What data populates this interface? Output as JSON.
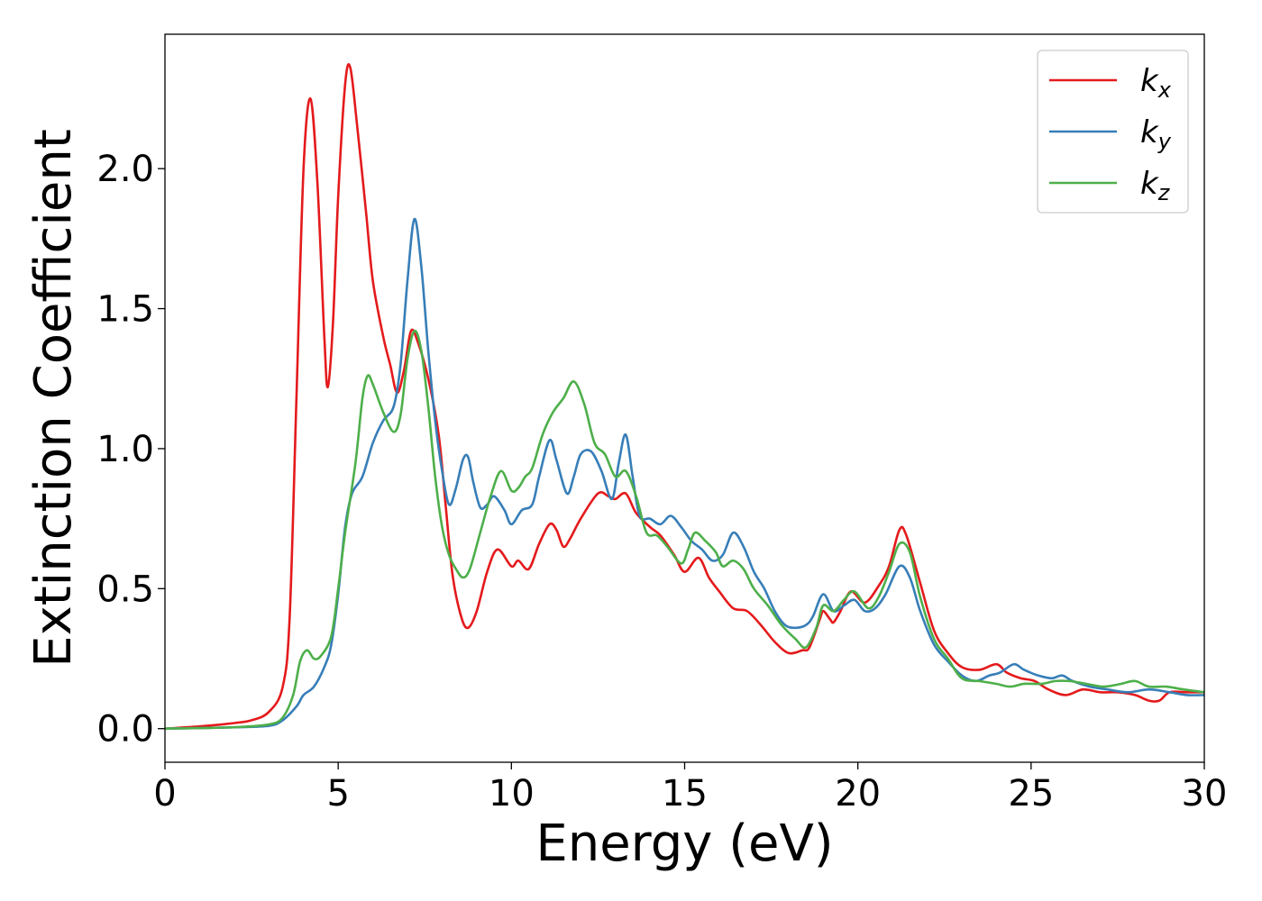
{
  "chart_data": {
    "type": "line",
    "title": "",
    "xlabel": "Energy (eV)",
    "ylabel": "Extinction Coefficient",
    "xlim": [
      0,
      30
    ],
    "ylim": [
      -0.12,
      2.48
    ],
    "xticks": [
      0,
      5,
      10,
      15,
      20,
      25,
      30
    ],
    "xtick_labels": [
      "0",
      "5",
      "10",
      "15",
      "20",
      "25",
      "30"
    ],
    "yticks": [
      0.0,
      0.5,
      1.0,
      1.5,
      2.0
    ],
    "ytick_labels": [
      "0.0",
      "0.5",
      "1.0",
      "1.5",
      "2.0"
    ],
    "grid": false,
    "legend_position": "top-right",
    "series": [
      {
        "name": "k",
        "subscript": "x",
        "color": "#e41a1c",
        "points": [
          [
            0,
            0.0
          ],
          [
            1,
            0.008
          ],
          [
            2,
            0.02
          ],
          [
            2.5,
            0.03
          ],
          [
            3,
            0.06
          ],
          [
            3.4,
            0.15
          ],
          [
            3.6,
            0.4
          ],
          [
            3.8,
            1.2
          ],
          [
            4.0,
            2.0
          ],
          [
            4.2,
            2.25
          ],
          [
            4.4,
            1.95
          ],
          [
            4.6,
            1.4
          ],
          [
            4.7,
            1.22
          ],
          [
            4.85,
            1.45
          ],
          [
            5.0,
            1.9
          ],
          [
            5.2,
            2.3
          ],
          [
            5.35,
            2.36
          ],
          [
            5.55,
            2.15
          ],
          [
            5.8,
            1.85
          ],
          [
            6.0,
            1.6
          ],
          [
            6.3,
            1.4
          ],
          [
            6.5,
            1.3
          ],
          [
            6.7,
            1.2
          ],
          [
            6.9,
            1.28
          ],
          [
            7.1,
            1.42
          ],
          [
            7.3,
            1.38
          ],
          [
            7.6,
            1.25
          ],
          [
            7.9,
            1.05
          ],
          [
            8.1,
            0.8
          ],
          [
            8.3,
            0.55
          ],
          [
            8.55,
            0.4
          ],
          [
            8.75,
            0.36
          ],
          [
            9.0,
            0.42
          ],
          [
            9.3,
            0.56
          ],
          [
            9.6,
            0.64
          ],
          [
            10.0,
            0.58
          ],
          [
            10.2,
            0.6
          ],
          [
            10.5,
            0.57
          ],
          [
            10.8,
            0.66
          ],
          [
            11.1,
            0.73
          ],
          [
            11.3,
            0.71
          ],
          [
            11.5,
            0.65
          ],
          [
            11.7,
            0.68
          ],
          [
            12.0,
            0.75
          ],
          [
            12.5,
            0.84
          ],
          [
            12.8,
            0.83
          ],
          [
            13.0,
            0.82
          ],
          [
            13.3,
            0.84
          ],
          [
            13.6,
            0.77
          ],
          [
            14.0,
            0.72
          ],
          [
            14.3,
            0.69
          ],
          [
            14.7,
            0.62
          ],
          [
            15.0,
            0.56
          ],
          [
            15.4,
            0.61
          ],
          [
            15.7,
            0.54
          ],
          [
            16.0,
            0.49
          ],
          [
            16.4,
            0.43
          ],
          [
            16.8,
            0.42
          ],
          [
            17.2,
            0.37
          ],
          [
            17.6,
            0.31
          ],
          [
            18.0,
            0.27
          ],
          [
            18.4,
            0.28
          ],
          [
            18.6,
            0.29
          ],
          [
            18.9,
            0.39
          ],
          [
            19.0,
            0.42
          ],
          [
            19.2,
            0.39
          ],
          [
            19.3,
            0.38
          ],
          [
            19.5,
            0.42
          ],
          [
            19.8,
            0.49
          ],
          [
            20.2,
            0.45
          ],
          [
            20.6,
            0.51
          ],
          [
            20.9,
            0.58
          ],
          [
            21.2,
            0.71
          ],
          [
            21.4,
            0.69
          ],
          [
            21.8,
            0.52
          ],
          [
            22.2,
            0.35
          ],
          [
            22.6,
            0.27
          ],
          [
            23.0,
            0.22
          ],
          [
            23.5,
            0.21
          ],
          [
            24.0,
            0.23
          ],
          [
            24.3,
            0.2
          ],
          [
            24.7,
            0.18
          ],
          [
            25.1,
            0.17
          ],
          [
            25.5,
            0.14
          ],
          [
            26.0,
            0.12
          ],
          [
            26.5,
            0.14
          ],
          [
            27.0,
            0.13
          ],
          [
            27.5,
            0.13
          ],
          [
            28.0,
            0.12
          ],
          [
            28.4,
            0.1
          ],
          [
            28.7,
            0.1
          ],
          [
            29.0,
            0.13
          ],
          [
            29.5,
            0.13
          ],
          [
            30.0,
            0.13
          ]
        ]
      },
      {
        "name": "k",
        "subscript": "y",
        "color": "#377eb8",
        "points": [
          [
            0,
            0.0
          ],
          [
            1,
            0.002
          ],
          [
            2,
            0.005
          ],
          [
            3,
            0.01
          ],
          [
            3.4,
            0.03
          ],
          [
            3.8,
            0.08
          ],
          [
            4.0,
            0.12
          ],
          [
            4.3,
            0.15
          ],
          [
            4.6,
            0.22
          ],
          [
            4.8,
            0.3
          ],
          [
            5.0,
            0.48
          ],
          [
            5.2,
            0.72
          ],
          [
            5.4,
            0.84
          ],
          [
            5.7,
            0.9
          ],
          [
            6.0,
            1.02
          ],
          [
            6.3,
            1.1
          ],
          [
            6.6,
            1.15
          ],
          [
            6.8,
            1.3
          ],
          [
            7.0,
            1.6
          ],
          [
            7.2,
            1.82
          ],
          [
            7.4,
            1.65
          ],
          [
            7.6,
            1.35
          ],
          [
            7.8,
            1.1
          ],
          [
            8.0,
            0.92
          ],
          [
            8.2,
            0.8
          ],
          [
            8.4,
            0.86
          ],
          [
            8.6,
            0.96
          ],
          [
            8.75,
            0.97
          ],
          [
            8.9,
            0.88
          ],
          [
            9.1,
            0.79
          ],
          [
            9.3,
            0.8
          ],
          [
            9.5,
            0.83
          ],
          [
            9.8,
            0.78
          ],
          [
            10.0,
            0.73
          ],
          [
            10.3,
            0.78
          ],
          [
            10.6,
            0.8
          ],
          [
            10.8,
            0.9
          ],
          [
            11.1,
            1.03
          ],
          [
            11.3,
            0.96
          ],
          [
            11.6,
            0.84
          ],
          [
            11.8,
            0.9
          ],
          [
            12.0,
            0.98
          ],
          [
            12.3,
            0.99
          ],
          [
            12.6,
            0.92
          ],
          [
            12.9,
            0.82
          ],
          [
            13.1,
            0.95
          ],
          [
            13.3,
            1.05
          ],
          [
            13.5,
            0.9
          ],
          [
            13.7,
            0.76
          ],
          [
            14.0,
            0.75
          ],
          [
            14.3,
            0.73
          ],
          [
            14.6,
            0.76
          ],
          [
            14.9,
            0.72
          ],
          [
            15.2,
            0.67
          ],
          [
            15.5,
            0.64
          ],
          [
            15.8,
            0.6
          ],
          [
            16.1,
            0.62
          ],
          [
            16.4,
            0.7
          ],
          [
            16.7,
            0.65
          ],
          [
            17.0,
            0.56
          ],
          [
            17.3,
            0.5
          ],
          [
            17.6,
            0.42
          ],
          [
            17.9,
            0.37
          ],
          [
            18.2,
            0.36
          ],
          [
            18.5,
            0.37
          ],
          [
            18.7,
            0.4
          ],
          [
            19.0,
            0.48
          ],
          [
            19.3,
            0.42
          ],
          [
            19.6,
            0.44
          ],
          [
            19.9,
            0.46
          ],
          [
            20.2,
            0.42
          ],
          [
            20.5,
            0.43
          ],
          [
            20.8,
            0.48
          ],
          [
            21.2,
            0.58
          ],
          [
            21.5,
            0.54
          ],
          [
            21.8,
            0.42
          ],
          [
            22.2,
            0.3
          ],
          [
            22.6,
            0.24
          ],
          [
            23.0,
            0.19
          ],
          [
            23.4,
            0.17
          ],
          [
            23.8,
            0.19
          ],
          [
            24.1,
            0.2
          ],
          [
            24.5,
            0.23
          ],
          [
            24.8,
            0.21
          ],
          [
            25.2,
            0.19
          ],
          [
            25.6,
            0.18
          ],
          [
            25.9,
            0.19
          ],
          [
            26.2,
            0.17
          ],
          [
            26.7,
            0.15
          ],
          [
            27.2,
            0.14
          ],
          [
            27.8,
            0.13
          ],
          [
            28.4,
            0.14
          ],
          [
            29.0,
            0.13
          ],
          [
            29.5,
            0.12
          ],
          [
            30.0,
            0.12
          ]
        ]
      },
      {
        "name": "k",
        "subscript": "z",
        "color": "#4daf4a",
        "points": [
          [
            0,
            0.0
          ],
          [
            1,
            0.002
          ],
          [
            2,
            0.005
          ],
          [
            3,
            0.015
          ],
          [
            3.4,
            0.04
          ],
          [
            3.7,
            0.12
          ],
          [
            3.9,
            0.24
          ],
          [
            4.1,
            0.28
          ],
          [
            4.3,
            0.25
          ],
          [
            4.5,
            0.26
          ],
          [
            4.8,
            0.33
          ],
          [
            5.0,
            0.5
          ],
          [
            5.2,
            0.7
          ],
          [
            5.5,
            0.95
          ],
          [
            5.7,
            1.18
          ],
          [
            5.85,
            1.26
          ],
          [
            6.0,
            1.23
          ],
          [
            6.3,
            1.13
          ],
          [
            6.6,
            1.06
          ],
          [
            6.8,
            1.12
          ],
          [
            7.0,
            1.32
          ],
          [
            7.2,
            1.42
          ],
          [
            7.4,
            1.35
          ],
          [
            7.6,
            1.15
          ],
          [
            7.8,
            0.9
          ],
          [
            8.0,
            0.72
          ],
          [
            8.2,
            0.62
          ],
          [
            8.4,
            0.57
          ],
          [
            8.6,
            0.54
          ],
          [
            8.8,
            0.57
          ],
          [
            9.1,
            0.7
          ],
          [
            9.4,
            0.83
          ],
          [
            9.7,
            0.92
          ],
          [
            10.0,
            0.85
          ],
          [
            10.2,
            0.86
          ],
          [
            10.4,
            0.9
          ],
          [
            10.6,
            0.93
          ],
          [
            10.9,
            1.05
          ],
          [
            11.2,
            1.13
          ],
          [
            11.5,
            1.18
          ],
          [
            11.8,
            1.24
          ],
          [
            12.1,
            1.16
          ],
          [
            12.4,
            1.02
          ],
          [
            12.7,
            0.98
          ],
          [
            13.0,
            0.9
          ],
          [
            13.3,
            0.92
          ],
          [
            13.6,
            0.83
          ],
          [
            13.9,
            0.7
          ],
          [
            14.2,
            0.69
          ],
          [
            14.5,
            0.65
          ],
          [
            14.9,
            0.59
          ],
          [
            15.1,
            0.64
          ],
          [
            15.3,
            0.7
          ],
          [
            15.6,
            0.67
          ],
          [
            15.9,
            0.63
          ],
          [
            16.1,
            0.58
          ],
          [
            16.4,
            0.6
          ],
          [
            16.7,
            0.57
          ],
          [
            17.0,
            0.5
          ],
          [
            17.4,
            0.44
          ],
          [
            17.8,
            0.37
          ],
          [
            18.2,
            0.32
          ],
          [
            18.5,
            0.29
          ],
          [
            18.8,
            0.36
          ],
          [
            19.0,
            0.44
          ],
          [
            19.3,
            0.42
          ],
          [
            19.6,
            0.46
          ],
          [
            19.9,
            0.49
          ],
          [
            20.3,
            0.43
          ],
          [
            20.6,
            0.47
          ],
          [
            20.9,
            0.56
          ],
          [
            21.2,
            0.66
          ],
          [
            21.5,
            0.63
          ],
          [
            21.8,
            0.47
          ],
          [
            22.2,
            0.32
          ],
          [
            22.6,
            0.25
          ],
          [
            23.0,
            0.18
          ],
          [
            23.5,
            0.17
          ],
          [
            24.0,
            0.16
          ],
          [
            24.4,
            0.15
          ],
          [
            24.8,
            0.16
          ],
          [
            25.3,
            0.16
          ],
          [
            25.7,
            0.17
          ],
          [
            26.1,
            0.17
          ],
          [
            26.6,
            0.16
          ],
          [
            27.1,
            0.15
          ],
          [
            27.6,
            0.16
          ],
          [
            28.0,
            0.17
          ],
          [
            28.4,
            0.15
          ],
          [
            28.9,
            0.15
          ],
          [
            29.4,
            0.14
          ],
          [
            30.0,
            0.13
          ]
        ]
      }
    ]
  }
}
